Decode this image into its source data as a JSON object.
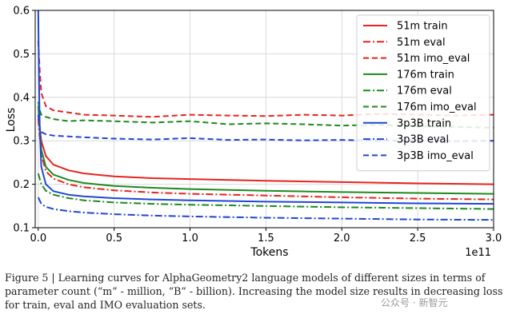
{
  "chart_data": {
    "type": "line",
    "xlabel": "Tokens",
    "ylabel": "Loss",
    "x_offset_label": "1e11",
    "xlim": [
      -0.02,
      3.0
    ],
    "ylim": [
      0.1,
      0.6
    ],
    "x_ticks": [
      0.0,
      0.5,
      1.0,
      1.5,
      2.0,
      2.5,
      3.0
    ],
    "x_tick_labels": [
      "0.0",
      "0.5",
      "1.0",
      "1.5",
      "2.0",
      "2.5",
      "3.0"
    ],
    "y_ticks": [
      0.1,
      0.2,
      0.3,
      0.4,
      0.5,
      0.6
    ],
    "y_tick_labels": [
      "0.1",
      "0.2",
      "0.3",
      "0.4",
      "0.5",
      "0.6"
    ],
    "grid": true,
    "legend_position": "top-right",
    "series": [
      {
        "name": "51m train",
        "color": "#e8231d",
        "style": "solid",
        "x": [
          0.0,
          0.02,
          0.05,
          0.1,
          0.2,
          0.3,
          0.5,
          0.75,
          1.0,
          1.5,
          2.0,
          2.5,
          3.0
        ],
        "y": [
          0.36,
          0.3,
          0.265,
          0.245,
          0.232,
          0.225,
          0.218,
          0.214,
          0.212,
          0.208,
          0.205,
          0.202,
          0.2
        ]
      },
      {
        "name": "51m eval",
        "color": "#e8231d",
        "style": "dashdot",
        "x": [
          0.0,
          0.02,
          0.05,
          0.1,
          0.2,
          0.3,
          0.5,
          0.75,
          1.0,
          1.5,
          2.0,
          2.5,
          3.0
        ],
        "y": [
          0.35,
          0.27,
          0.23,
          0.213,
          0.2,
          0.193,
          0.186,
          0.181,
          0.178,
          0.174,
          0.17,
          0.167,
          0.165
        ]
      },
      {
        "name": "51m imo_eval",
        "color": "#e8231d",
        "style": "dashed",
        "x": [
          0.0,
          0.01,
          0.02,
          0.05,
          0.1,
          0.2,
          0.3,
          0.5,
          0.75,
          1.0,
          1.25,
          1.5,
          1.75,
          2.0,
          2.25,
          2.5,
          2.75,
          3.0
        ],
        "y": [
          0.53,
          0.46,
          0.41,
          0.38,
          0.37,
          0.365,
          0.36,
          0.358,
          0.355,
          0.36,
          0.358,
          0.357,
          0.36,
          0.358,
          0.362,
          0.36,
          0.358,
          0.36
        ]
      },
      {
        "name": "176m train",
        "color": "#1d8a1d",
        "style": "solid",
        "x": [
          0.0,
          0.02,
          0.05,
          0.1,
          0.2,
          0.3,
          0.5,
          0.75,
          1.0,
          1.5,
          2.0,
          2.5,
          3.0
        ],
        "y": [
          0.38,
          0.28,
          0.24,
          0.222,
          0.21,
          0.203,
          0.196,
          0.192,
          0.189,
          0.185,
          0.182,
          0.18,
          0.178
        ]
      },
      {
        "name": "176m eval",
        "color": "#1d8a1d",
        "style": "dashdot",
        "x": [
          0.0,
          0.02,
          0.05,
          0.1,
          0.2,
          0.3,
          0.5,
          0.75,
          1.0,
          1.5,
          2.0,
          2.5,
          3.0
        ],
        "y": [
          0.225,
          0.2,
          0.185,
          0.176,
          0.168,
          0.163,
          0.158,
          0.155,
          0.153,
          0.15,
          0.147,
          0.145,
          0.143
        ]
      },
      {
        "name": "176m imo_eval",
        "color": "#1d8a1d",
        "style": "dashed",
        "x": [
          0.0,
          0.01,
          0.02,
          0.05,
          0.1,
          0.2,
          0.3,
          0.5,
          0.75,
          1.0,
          1.25,
          1.5,
          1.75,
          2.0,
          2.25,
          2.5,
          2.75,
          3.0
        ],
        "y": [
          0.39,
          0.37,
          0.36,
          0.355,
          0.35,
          0.345,
          0.347,
          0.345,
          0.342,
          0.345,
          0.338,
          0.34,
          0.338,
          0.335,
          0.337,
          0.333,
          0.332,
          0.33
        ]
      },
      {
        "name": "3p3B train",
        "color": "#1f45d6",
        "style": "solid",
        "x": [
          0.0,
          0.005,
          0.01,
          0.02,
          0.05,
          0.1,
          0.2,
          0.3,
          0.5,
          0.75,
          1.0,
          1.5,
          2.0,
          2.5,
          3.0
        ],
        "y": [
          0.6,
          0.45,
          0.33,
          0.24,
          0.2,
          0.184,
          0.176,
          0.172,
          0.168,
          0.165,
          0.163,
          0.16,
          0.158,
          0.156,
          0.155
        ]
      },
      {
        "name": "3p3B eval",
        "color": "#1f45d6",
        "style": "dashdot",
        "x": [
          0.0,
          0.02,
          0.05,
          0.1,
          0.2,
          0.3,
          0.5,
          0.75,
          1.0,
          1.5,
          2.0,
          2.5,
          3.0
        ],
        "y": [
          0.17,
          0.155,
          0.148,
          0.143,
          0.138,
          0.135,
          0.131,
          0.128,
          0.126,
          0.123,
          0.121,
          0.119,
          0.118
        ]
      },
      {
        "name": "3p3B imo_eval",
        "color": "#1f45d6",
        "style": "dashed",
        "x": [
          0.0,
          0.01,
          0.02,
          0.05,
          0.1,
          0.2,
          0.3,
          0.5,
          0.75,
          1.0,
          1.25,
          1.5,
          1.75,
          2.0,
          2.25,
          2.5,
          2.75,
          3.0
        ],
        "y": [
          0.36,
          0.33,
          0.32,
          0.315,
          0.312,
          0.31,
          0.308,
          0.305,
          0.303,
          0.306,
          0.302,
          0.303,
          0.301,
          0.302,
          0.3,
          0.301,
          0.299,
          0.3
        ]
      }
    ]
  },
  "caption": "Figure 5 | Learning curves for AlphaGeometry2 language models of different sizes in terms of parameter count (“m” - million, “B” - billion). Increasing the model size results in decreasing loss for train, eval and IMO evaluation sets.",
  "watermark": "公众号 · 新智元"
}
